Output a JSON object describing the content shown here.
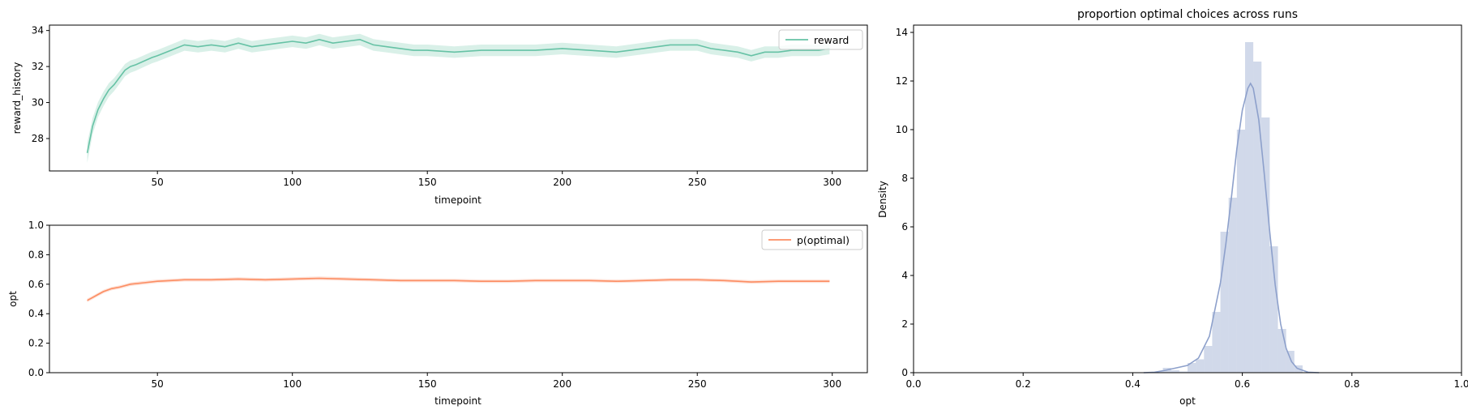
{
  "chart_data": [
    {
      "id": "reward",
      "type": "line",
      "xlabel": "timepoint",
      "ylabel": "reward_history",
      "xlim": [
        10,
        313
      ],
      "ylim": [
        26.2,
        34.3
      ],
      "xticks": [
        50,
        100,
        150,
        200,
        250,
        300
      ],
      "yticks": [
        28,
        30,
        32,
        34
      ],
      "legend_placement": "top-right",
      "color": "#66c2a5",
      "series": [
        {
          "name": "reward",
          "x": [
            24,
            26,
            28,
            30,
            32,
            34,
            36,
            38,
            40,
            42,
            45,
            48,
            50,
            55,
            60,
            65,
            70,
            75,
            80,
            85,
            90,
            95,
            100,
            105,
            110,
            115,
            120,
            125,
            130,
            135,
            140,
            145,
            150,
            160,
            170,
            180,
            190,
            200,
            210,
            220,
            230,
            240,
            245,
            250,
            255,
            260,
            265,
            270,
            275,
            280,
            285,
            290,
            295,
            299
          ],
          "y": [
            27.2,
            28.7,
            29.6,
            30.2,
            30.7,
            31.0,
            31.4,
            31.8,
            32.0,
            32.1,
            32.3,
            32.5,
            32.6,
            32.9,
            33.2,
            33.1,
            33.2,
            33.1,
            33.3,
            33.1,
            33.2,
            33.3,
            33.4,
            33.3,
            33.5,
            33.3,
            33.4,
            33.5,
            33.2,
            33.1,
            33.0,
            32.9,
            32.9,
            32.8,
            32.9,
            32.9,
            32.9,
            33.0,
            32.9,
            32.8,
            33.0,
            33.2,
            33.2,
            33.2,
            33.0,
            32.9,
            32.8,
            32.6,
            32.8,
            32.8,
            32.9,
            32.9,
            32.9,
            33.0
          ],
          "band_halfwidth": [
            0.55,
            0.45,
            0.42,
            0.4,
            0.38,
            0.36,
            0.35,
            0.34,
            0.34,
            0.33,
            0.32,
            0.32,
            0.32,
            0.32,
            0.32,
            0.32,
            0.32,
            0.32,
            0.32,
            0.32,
            0.32,
            0.32,
            0.32,
            0.32,
            0.32,
            0.32,
            0.32,
            0.32,
            0.32,
            0.32,
            0.32,
            0.32,
            0.32,
            0.32,
            0.32,
            0.32,
            0.32,
            0.32,
            0.32,
            0.32,
            0.32,
            0.32,
            0.32,
            0.32,
            0.32,
            0.32,
            0.32,
            0.32,
            0.32,
            0.32,
            0.32,
            0.32,
            0.32,
            0.32
          ]
        }
      ]
    },
    {
      "id": "opt",
      "type": "line",
      "xlabel": "timepoint",
      "ylabel": "opt",
      "xlim": [
        10,
        313
      ],
      "ylim": [
        0.0,
        1.0
      ],
      "xticks": [
        50,
        100,
        150,
        200,
        250,
        300
      ],
      "yticks": [
        0.0,
        0.2,
        0.4,
        0.6,
        0.8,
        1.0
      ],
      "legend_placement": "top-right",
      "color": "#fc8d62",
      "series": [
        {
          "name": "p(optimal)",
          "x": [
            24,
            26,
            28,
            30,
            33,
            36,
            40,
            45,
            50,
            55,
            60,
            70,
            80,
            90,
            100,
            110,
            120,
            130,
            140,
            150,
            160,
            170,
            180,
            190,
            200,
            210,
            220,
            230,
            240,
            250,
            260,
            270,
            280,
            290,
            299
          ],
          "y": [
            0.49,
            0.51,
            0.53,
            0.55,
            0.57,
            0.58,
            0.6,
            0.61,
            0.62,
            0.625,
            0.63,
            0.63,
            0.635,
            0.63,
            0.635,
            0.64,
            0.635,
            0.63,
            0.625,
            0.625,
            0.625,
            0.62,
            0.62,
            0.625,
            0.625,
            0.625,
            0.62,
            0.625,
            0.63,
            0.63,
            0.625,
            0.615,
            0.62,
            0.62,
            0.62
          ],
          "band_halfwidth": 0.012
        }
      ]
    },
    {
      "id": "dist",
      "type": "histogram",
      "title": "proportion optimal choices across runs",
      "xlabel": "opt",
      "ylabel": "Density",
      "xlim": [
        0.0,
        1.0
      ],
      "ylim": [
        0,
        14.3
      ],
      "xticks": [
        0.0,
        0.2,
        0.4,
        0.6,
        0.8,
        1.0
      ],
      "yticks": [
        0,
        2,
        4,
        6,
        8,
        10,
        12,
        14
      ],
      "bar_color": "#8da0cb",
      "bar_opacity": 0.4,
      "kde_color": "#8da0cb",
      "bins": [
        {
          "start": 0.44,
          "end": 0.455,
          "density": 0.05
        },
        {
          "start": 0.455,
          "end": 0.47,
          "density": 0.2
        },
        {
          "start": 0.47,
          "end": 0.485,
          "density": 0.1
        },
        {
          "start": 0.485,
          "end": 0.5,
          "density": 0.05
        },
        {
          "start": 0.5,
          "end": 0.515,
          "density": 0.4
        },
        {
          "start": 0.515,
          "end": 0.53,
          "density": 0.55
        },
        {
          "start": 0.53,
          "end": 0.545,
          "density": 1.1
        },
        {
          "start": 0.545,
          "end": 0.56,
          "density": 2.5
        },
        {
          "start": 0.56,
          "end": 0.575,
          "density": 5.8
        },
        {
          "start": 0.575,
          "end": 0.59,
          "density": 7.2
        },
        {
          "start": 0.59,
          "end": 0.605,
          "density": 10.0
        },
        {
          "start": 0.605,
          "end": 0.62,
          "density": 13.6
        },
        {
          "start": 0.62,
          "end": 0.635,
          "density": 12.8
        },
        {
          "start": 0.635,
          "end": 0.65,
          "density": 10.5
        },
        {
          "start": 0.65,
          "end": 0.665,
          "density": 5.2
        },
        {
          "start": 0.665,
          "end": 0.68,
          "density": 1.8
        },
        {
          "start": 0.68,
          "end": 0.695,
          "density": 0.9
        },
        {
          "start": 0.695,
          "end": 0.71,
          "density": 0.3
        }
      ],
      "kde": {
        "x": [
          0.42,
          0.44,
          0.46,
          0.48,
          0.5,
          0.52,
          0.54,
          0.56,
          0.57,
          0.58,
          0.59,
          0.6,
          0.61,
          0.615,
          0.62,
          0.63,
          0.64,
          0.65,
          0.66,
          0.67,
          0.68,
          0.69,
          0.7,
          0.72,
          0.74
        ],
        "y": [
          0.0,
          0.02,
          0.1,
          0.2,
          0.3,
          0.6,
          1.5,
          3.7,
          5.3,
          7.2,
          9.2,
          10.8,
          11.7,
          11.9,
          11.7,
          10.4,
          8.2,
          5.8,
          3.6,
          2.0,
          1.0,
          0.45,
          0.18,
          0.02,
          0.0
        ]
      }
    }
  ]
}
